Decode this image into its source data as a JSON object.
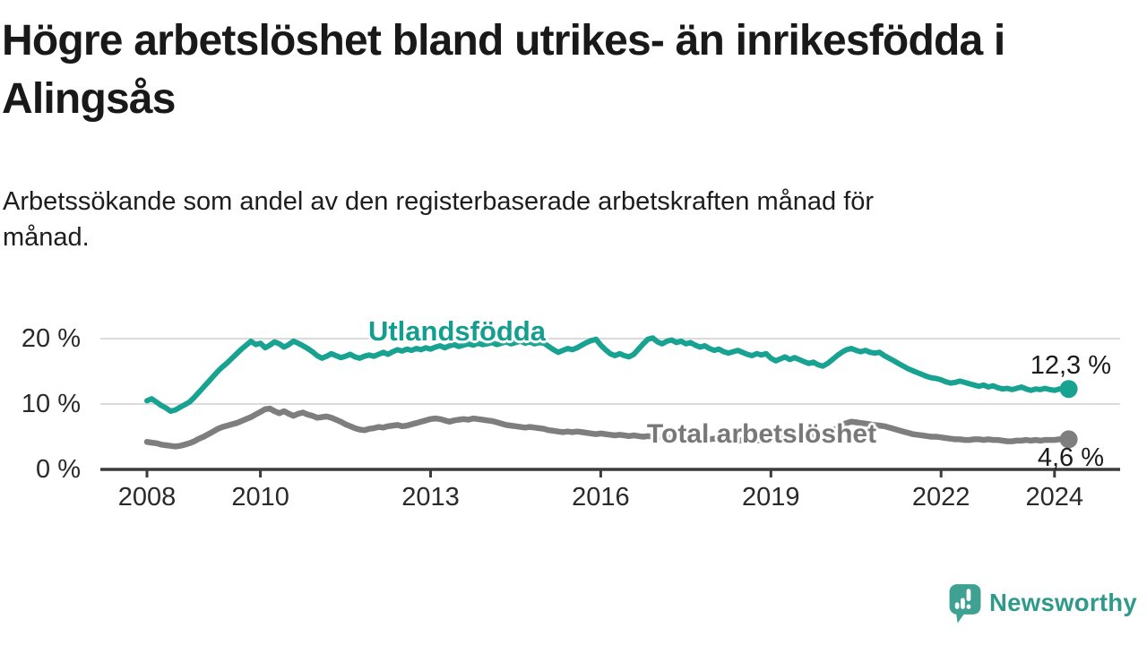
{
  "chart_data": {
    "type": "line",
    "title": "Högre arbetslöshet bland utrikes- än inrikesfödda i\nAlingsås",
    "subtitle": "Arbetssökande som andel av den registerbaserade arbetskraften månad för\nmånad.",
    "unit": "%",
    "x_start": 2008.0,
    "x_step": "month",
    "x_end_label_period": "2024",
    "ylim": [
      0,
      22
    ],
    "grid": "horizontal",
    "y_gridlines": [
      10,
      20
    ],
    "legend_position": "inline-labels-on-lines",
    "y_ticks": {
      "values": [
        20,
        10,
        0
      ],
      "labels": [
        "20 %",
        "10 %",
        "0 %"
      ]
    },
    "x_ticks": {
      "values": [
        2008,
        2010,
        2013,
        2016,
        2019,
        2022,
        2024
      ],
      "labels": [
        "2008",
        "2010",
        "2013",
        "2016",
        "2019",
        "2022",
        "2024"
      ]
    },
    "series": [
      {
        "name": "Utlandsfödda",
        "color": "#17a292",
        "end_label": "12,3 %",
        "end_value": 12.3,
        "values": [
          10.5,
          10.8,
          10.3,
          9.8,
          9.4,
          8.9,
          9.1,
          9.5,
          9.9,
          10.3,
          11.0,
          11.8,
          12.6,
          13.4,
          14.2,
          15.0,
          15.7,
          16.3,
          17.0,
          17.7,
          18.4,
          19.0,
          19.6,
          19.1,
          19.3,
          18.6,
          19.0,
          19.5,
          19.2,
          18.7,
          19.1,
          19.6,
          19.3,
          18.9,
          18.5,
          18.0,
          17.4,
          17.0,
          17.3,
          17.7,
          17.4,
          17.1,
          17.3,
          17.6,
          17.2,
          17.0,
          17.3,
          17.5,
          17.3,
          17.6,
          17.9,
          17.6,
          18.0,
          18.3,
          18.1,
          18.4,
          18.2,
          18.5,
          18.3,
          18.6,
          18.4,
          18.7,
          18.9,
          18.6,
          18.9,
          19.1,
          18.8,
          19.0,
          19.2,
          19.0,
          19.3,
          19.1,
          19.2,
          19.4,
          19.1,
          19.3,
          19.5,
          19.2,
          19.4,
          19.6,
          19.3,
          19.5,
          19.2,
          19.4,
          19.3,
          18.8,
          18.3,
          17.9,
          18.2,
          18.5,
          18.3,
          18.6,
          19.0,
          19.4,
          19.7,
          19.9,
          19.0,
          18.3,
          17.7,
          17.4,
          17.7,
          17.4,
          17.2,
          17.6,
          18.4,
          19.2,
          19.9,
          20.1,
          19.5,
          19.2,
          19.6,
          19.8,
          19.4,
          19.6,
          19.2,
          19.4,
          19.0,
          18.7,
          18.9,
          18.5,
          18.2,
          18.4,
          18.0,
          17.8,
          18.0,
          18.2,
          17.9,
          17.6,
          17.4,
          17.7,
          17.5,
          17.7,
          17.0,
          16.6,
          16.9,
          17.2,
          16.8,
          17.1,
          16.8,
          16.5,
          16.2,
          16.4,
          16.0,
          15.8,
          16.2,
          16.8,
          17.4,
          17.9,
          18.3,
          18.5,
          18.2,
          18.0,
          18.2,
          17.9,
          17.8,
          17.9,
          17.4,
          17.0,
          16.6,
          16.2,
          15.8,
          15.4,
          15.1,
          14.8,
          14.5,
          14.2,
          14.0,
          13.9,
          13.7,
          13.4,
          13.2,
          13.3,
          13.5,
          13.3,
          13.1,
          12.9,
          12.7,
          12.9,
          12.6,
          12.8,
          12.5,
          12.3,
          12.4,
          12.2,
          12.4,
          12.6,
          12.3,
          12.1,
          12.3,
          12.2,
          12.4,
          12.2,
          12.1,
          12.3,
          12.4,
          12.3
        ]
      },
      {
        "name": "Total arbetslöshet",
        "color": "#7e7e7e",
        "end_label": "4,6 %",
        "end_value": 4.6,
        "values": [
          4.2,
          4.1,
          4.0,
          3.8,
          3.7,
          3.6,
          3.5,
          3.6,
          3.8,
          4.0,
          4.3,
          4.7,
          5.0,
          5.4,
          5.8,
          6.2,
          6.5,
          6.7,
          6.9,
          7.1,
          7.4,
          7.7,
          8.0,
          8.4,
          8.8,
          9.2,
          9.3,
          8.9,
          8.6,
          8.9,
          8.5,
          8.2,
          8.5,
          8.7,
          8.4,
          8.2,
          7.9,
          8.0,
          8.1,
          7.9,
          7.6,
          7.3,
          6.9,
          6.6,
          6.3,
          6.1,
          6.0,
          6.2,
          6.3,
          6.5,
          6.4,
          6.6,
          6.7,
          6.8,
          6.6,
          6.7,
          6.9,
          7.1,
          7.3,
          7.5,
          7.7,
          7.8,
          7.7,
          7.5,
          7.3,
          7.5,
          7.6,
          7.7,
          7.6,
          7.8,
          7.7,
          7.6,
          7.5,
          7.4,
          7.2,
          7.0,
          6.8,
          6.7,
          6.6,
          6.5,
          6.4,
          6.5,
          6.4,
          6.3,
          6.2,
          6.0,
          5.9,
          5.8,
          5.7,
          5.8,
          5.7,
          5.8,
          5.7,
          5.6,
          5.5,
          5.4,
          5.5,
          5.4,
          5.3,
          5.2,
          5.3,
          5.2,
          5.1,
          5.2,
          5.1,
          5.0,
          5.1,
          5.0,
          5.1,
          5.0,
          4.9,
          4.8,
          4.9,
          4.8,
          4.7,
          4.8,
          4.7,
          4.8,
          4.7,
          4.6,
          4.7,
          4.6,
          4.5,
          4.6,
          4.5,
          4.4,
          4.5,
          4.4,
          4.5,
          4.4,
          4.5,
          4.6,
          4.7,
          4.6,
          4.7,
          4.6,
          4.7,
          4.8,
          4.7,
          4.8,
          4.9,
          5.0,
          5.1,
          5.3,
          5.6,
          5.9,
          6.3,
          6.8,
          7.1,
          7.3,
          7.2,
          7.1,
          7.0,
          6.9,
          6.8,
          6.7,
          6.6,
          6.4,
          6.2,
          6.0,
          5.8,
          5.6,
          5.4,
          5.3,
          5.2,
          5.1,
          5.0,
          5.0,
          4.9,
          4.8,
          4.7,
          4.6,
          4.6,
          4.5,
          4.5,
          4.6,
          4.6,
          4.5,
          4.6,
          4.5,
          4.5,
          4.4,
          4.3,
          4.3,
          4.4,
          4.4,
          4.5,
          4.4,
          4.5,
          4.4,
          4.5,
          4.5,
          4.5,
          4.6,
          4.6,
          4.6
        ]
      }
    ],
    "colors": {
      "axis": "#3c3c3c",
      "gridline": "#dbdbdb",
      "tick_text": "#2a2a2a",
      "value_text": "#1b1b1b"
    }
  },
  "branding": {
    "name": "Newsworthy",
    "logo_icon": "newsworthy-speech-bubble-bar-chart-icon",
    "icon_color": "#3fa191",
    "text_color": "#2f998c"
  }
}
